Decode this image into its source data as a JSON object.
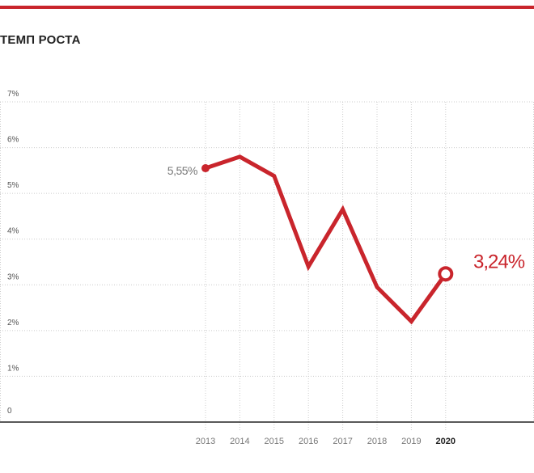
{
  "title": "ТЕМП РОСТА",
  "colors": {
    "accent": "#c9252c",
    "grid": "#cccccc",
    "axis": "#222222",
    "text": "#222222"
  },
  "chart_data": {
    "type": "line",
    "title": "ТЕМП РОСТА",
    "xlabel": "",
    "ylabel": "",
    "x": [
      "2013",
      "2014",
      "2015",
      "2016",
      "2017",
      "2018",
      "2019",
      "2020"
    ],
    "series": [
      {
        "values": [
          5.55,
          5.8,
          5.38,
          3.4,
          4.65,
          2.95,
          2.2,
          3.24
        ]
      }
    ],
    "y_ticks": [
      "0",
      "1%",
      "2%",
      "3%",
      "4%",
      "5%",
      "6%",
      "7%"
    ],
    "ylim": [
      0,
      7
    ],
    "grid": true,
    "highlight_x": "2020",
    "start_label": "5,55%",
    "end_label": "3,24%"
  }
}
